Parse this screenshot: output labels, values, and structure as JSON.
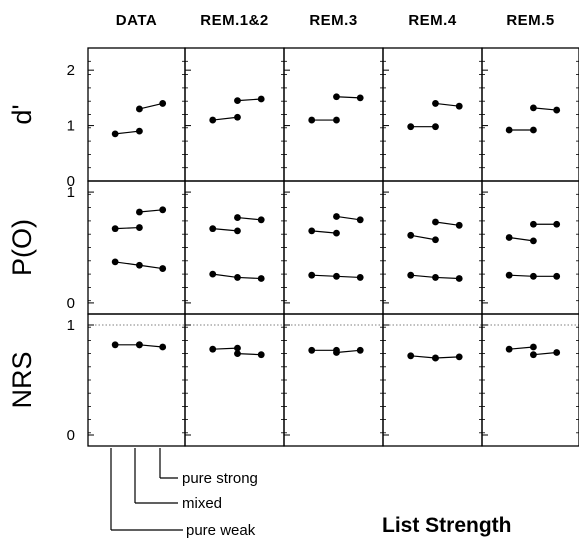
{
  "chart_data": {
    "type": "line",
    "title": "List Strength",
    "columns": [
      "DATA",
      "REM.1&2",
      "REM.3",
      "REM.4",
      "REM.5"
    ],
    "x_conditions": [
      "pure weak",
      "mixed",
      "pure strong"
    ],
    "rows": [
      {
        "label": "d'",
        "ylim": [
          0,
          2.4
        ],
        "ticks": [
          0,
          1,
          2
        ],
        "tick_labels": [
          "0",
          "1",
          "2"
        ],
        "reference_line": null,
        "panels": [
          {
            "weak": [
              0.85,
              0.9
            ],
            "strong": [
              1.3,
              1.4
            ]
          },
          {
            "weak": [
              1.1,
              1.15
            ],
            "strong": [
              1.45,
              1.48
            ]
          },
          {
            "weak": [
              1.1,
              1.1
            ],
            "strong": [
              1.52,
              1.5
            ]
          },
          {
            "weak": [
              0.98,
              0.98
            ],
            "strong": [
              1.4,
              1.35
            ]
          },
          {
            "weak": [
              0.92,
              0.92
            ],
            "strong": [
              1.32,
              1.28
            ]
          }
        ]
      },
      {
        "label": "P(O)",
        "ylim": [
          -0.1,
          1.1
        ],
        "ticks": [
          0,
          1
        ],
        "tick_labels": [
          "0",
          "1"
        ],
        "reference_line": null,
        "panels": [
          {
            "weak": [
              0.37,
              0.34,
              0.31
            ],
            "strong": [
              0.67,
              0.68,
              0.82,
              0.84
            ]
          },
          {
            "weak": [
              0.26,
              0.23,
              0.22
            ],
            "strong": [
              0.67,
              0.65,
              0.77,
              0.75
            ]
          },
          {
            "weak": [
              0.25,
              0.24,
              0.23
            ],
            "strong": [
              0.65,
              0.63,
              0.78,
              0.75
            ]
          },
          {
            "weak": [
              0.25,
              0.23,
              0.22
            ],
            "strong": [
              0.61,
              0.57,
              0.73,
              0.7
            ]
          },
          {
            "weak": [
              0.25,
              0.24,
              0.24
            ],
            "strong": [
              0.59,
              0.56,
              0.71,
              0.71
            ]
          }
        ]
      },
      {
        "label": "NRS",
        "ylim": [
          -0.1,
          1.1
        ],
        "ticks": [
          0,
          1
        ],
        "tick_labels": [
          "0",
          "1"
        ],
        "reference_line": 1,
        "panels": [
          {
            "mixed_weak": [
              0.82,
              0.82
            ],
            "mixed_strong": [
              0.82,
              0.8
            ]
          },
          {
            "mixed_weak": [
              0.78,
              0.79
            ],
            "mixed_strong": [
              0.74,
              0.73
            ]
          },
          {
            "mixed_weak": [
              0.77,
              0.77
            ],
            "mixed_strong": [
              0.75,
              0.77
            ]
          },
          {
            "mixed_weak": [
              0.72,
              0.7
            ],
            "mixed_strong": [
              0.7,
              0.71
            ]
          },
          {
            "mixed_weak": [
              0.78,
              0.8
            ],
            "mixed_strong": [
              0.73,
              0.75
            ]
          }
        ]
      }
    ],
    "legend": [
      "pure strong",
      "mixed",
      "pure weak"
    ],
    "grid": false
  }
}
